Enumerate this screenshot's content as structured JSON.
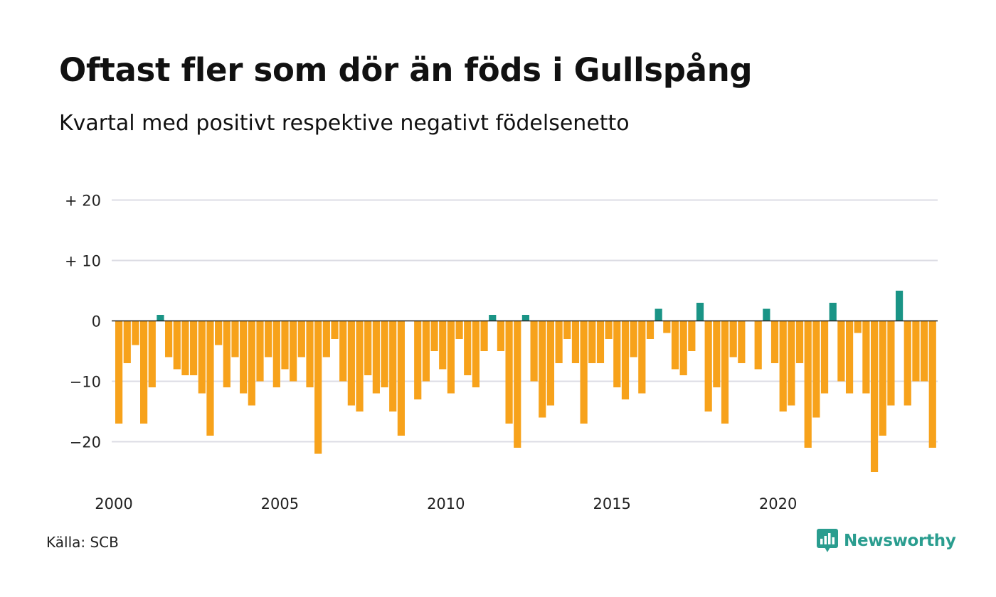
{
  "header": {
    "title": "Oftast fler som dör än föds i Gullspång",
    "subtitle": "Kvartal med positivt respektive negativt födelsenetto"
  },
  "footer": {
    "source": "Källa: SCB",
    "brand": "Newsworthy",
    "brand_icon": "newsworthy-chat-bars-icon"
  },
  "colors": {
    "positive": "#1a9486",
    "negative": "#f7a21b",
    "grid": "#dcdce4",
    "zero_line": "#222222",
    "brand": "#2a9d8f"
  },
  "chart_data": {
    "type": "bar",
    "x_start": "2000 Q1",
    "x_step": "quarter",
    "x_ticks": [
      {
        "label": "2000",
        "quarter_index": 0
      },
      {
        "label": "2005",
        "quarter_index": 20
      },
      {
        "label": "2010",
        "quarter_index": 40
      },
      {
        "label": "2015",
        "quarter_index": 60
      },
      {
        "label": "2020",
        "quarter_index": 80
      }
    ],
    "y_ticks": [
      {
        "label": "+ 20",
        "value": 20
      },
      {
        "label": "+ 10",
        "value": 10
      },
      {
        "label": "0",
        "value": 0
      },
      {
        "label": "−10",
        "value": -10
      },
      {
        "label": "−20",
        "value": -20
      }
    ],
    "ylim": [
      -27,
      20
    ],
    "grid": true,
    "values": [
      -17,
      -7,
      -4,
      -17,
      -11,
      1,
      -6,
      -8,
      -9,
      -9,
      -12,
      -19,
      -4,
      -11,
      -6,
      -12,
      -14,
      -10,
      -6,
      -11,
      -8,
      -10,
      -6,
      -11,
      -22,
      -6,
      -3,
      -10,
      -14,
      -15,
      -9,
      -12,
      -11,
      -15,
      -19,
      0,
      -13,
      -10,
      -5,
      -8,
      -12,
      -3,
      -9,
      -11,
      -5,
      1,
      -5,
      -17,
      -21,
      1,
      -10,
      -16,
      -14,
      -7,
      -3,
      -7,
      -17,
      -7,
      -7,
      -3,
      -11,
      -13,
      -6,
      -12,
      -3,
      2,
      -2,
      -8,
      -9,
      -5,
      3,
      -15,
      -11,
      -17,
      -6,
      -7,
      0,
      -8,
      2,
      -7,
      -15,
      -14,
      -7,
      -21,
      -16,
      -12,
      3,
      -10,
      -12,
      -2,
      -12,
      -25,
      -19,
      -14,
      5,
      -14,
      -10,
      -10,
      -21
    ]
  }
}
